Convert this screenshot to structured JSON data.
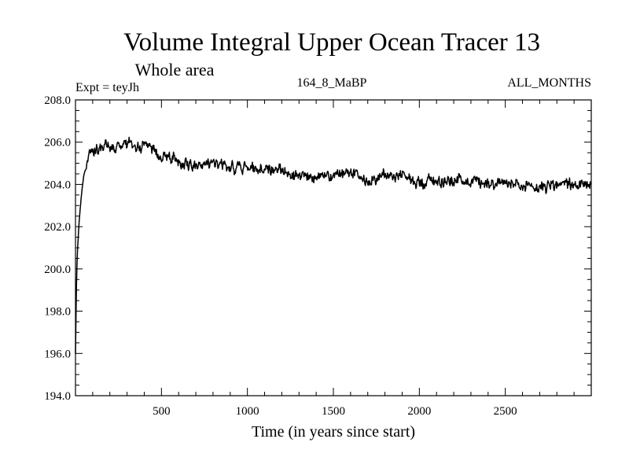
{
  "chart_data": {
    "type": "line",
    "title": "Volume Integral Upper Ocean Tracer 13",
    "subtitle": "Whole area",
    "expt_label": "Expt = teyJh",
    "run_label": "164_8_MaBP",
    "months_label": "ALL_MONTHS",
    "xlabel": "Time (in years since start)",
    "ylabel": "",
    "xlim": [
      0,
      3000
    ],
    "ylim": [
      194.0,
      208.0
    ],
    "x_ticks": [
      500,
      1000,
      1500,
      2000,
      2500
    ],
    "x_tick_labels": [
      "500",
      "1000",
      "1500",
      "2000",
      "2500"
    ],
    "y_ticks": [
      194.0,
      196.0,
      198.0,
      200.0,
      202.0,
      204.0,
      206.0,
      208.0
    ],
    "y_tick_labels": [
      "194.0",
      "196.0",
      "198.0",
      "200.0",
      "202.0",
      "204.0",
      "206.0",
      "208.0"
    ],
    "grid": false,
    "line_color": "#000000",
    "series": [
      {
        "name": "Upper Ocean Tracer 13",
        "x": [
          0,
          5,
          10,
          20,
          30,
          40,
          50,
          75,
          100,
          150,
          200,
          250,
          300,
          350,
          400,
          500,
          600,
          700,
          800,
          900,
          1000,
          1100,
          1200,
          1300,
          1400,
          1500,
          1600,
          1700,
          1800,
          1900,
          2000,
          2100,
          2200,
          2300,
          2400,
          2500,
          2600,
          2700,
          2800,
          2900,
          3000
        ],
        "values": [
          196.0,
          199.0,
          200.6,
          202.1,
          203.1,
          203.9,
          204.5,
          205.2,
          205.6,
          205.8,
          205.8,
          205.9,
          205.9,
          205.8,
          205.8,
          205.4,
          205.1,
          204.9,
          204.9,
          204.8,
          204.8,
          204.7,
          204.6,
          204.5,
          204.4,
          204.4,
          204.5,
          204.2,
          204.4,
          204.4,
          204.1,
          204.2,
          204.2,
          204.2,
          204.1,
          204.1,
          203.8,
          203.9,
          204.0,
          204.0,
          203.9
        ]
      }
    ]
  }
}
